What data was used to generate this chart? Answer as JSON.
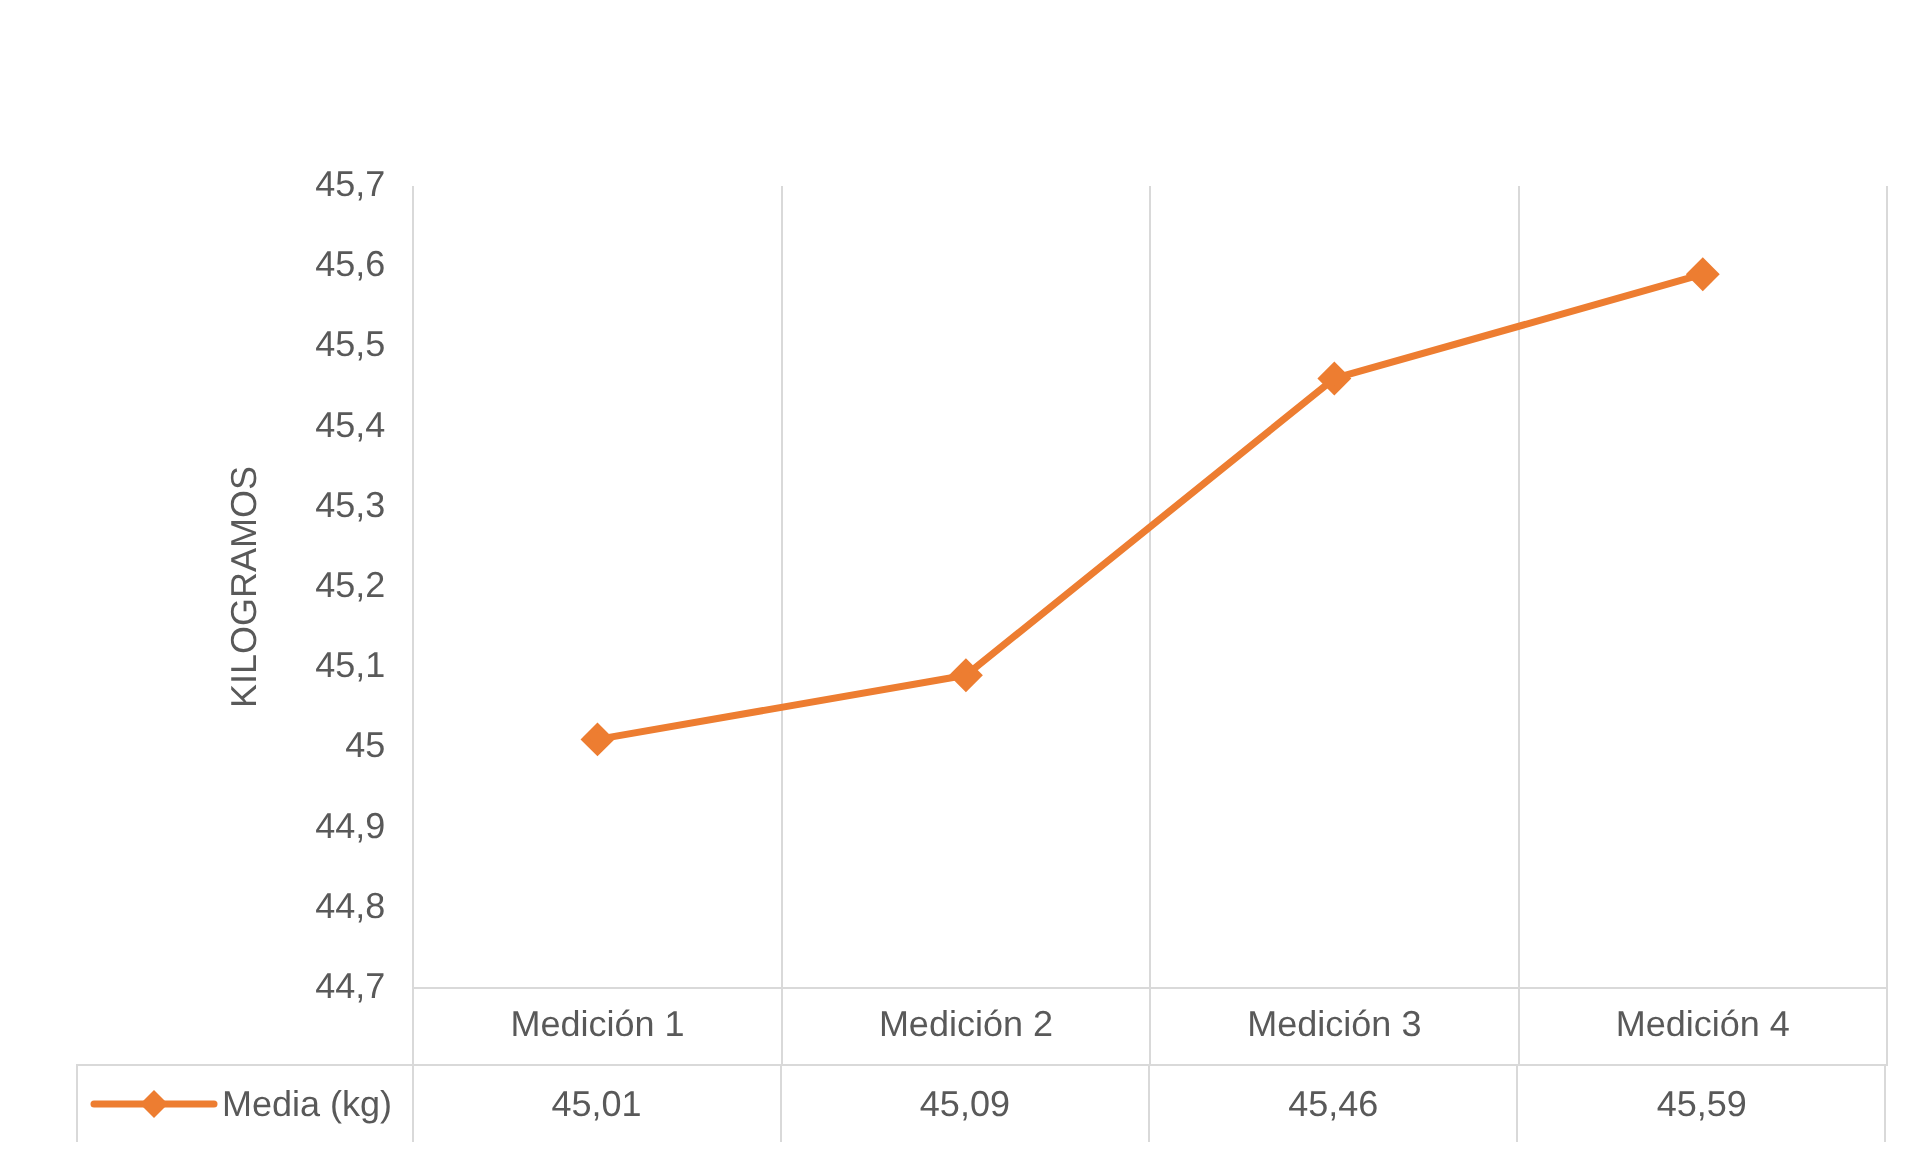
{
  "chart_data": {
    "type": "line",
    "ylabel": "KILOGRAMOS",
    "categories": [
      "Medición 1",
      "Medición 2",
      "Medición 3",
      "Medición 4"
    ],
    "series": [
      {
        "name": "Media (kg)",
        "color": "#ed7d31",
        "values": [
          45.01,
          45.09,
          45.46,
          45.59
        ],
        "value_labels": [
          "45,01",
          "45,09",
          "45,46",
          "45,59"
        ]
      }
    ],
    "ylim": [
      44.7,
      45.7
    ],
    "yticks": [
      {
        "value": 44.7,
        "label": "44,7"
      },
      {
        "value": 44.8,
        "label": "44,8"
      },
      {
        "value": 44.9,
        "label": "44,9"
      },
      {
        "value": 45,
        "label": "45"
      },
      {
        "value": 45.1,
        "label": "45,1"
      },
      {
        "value": 45.2,
        "label": "45,2"
      },
      {
        "value": 45.3,
        "label": "45,3"
      },
      {
        "value": 45.4,
        "label": "45,4"
      },
      {
        "value": 45.5,
        "label": "45,5"
      },
      {
        "value": 45.6,
        "label": "45,6"
      },
      {
        "value": 45.7,
        "label": "45,7"
      }
    ],
    "grid": "x",
    "legend": "bottom",
    "marker": "diamond",
    "line_style": "solid"
  }
}
